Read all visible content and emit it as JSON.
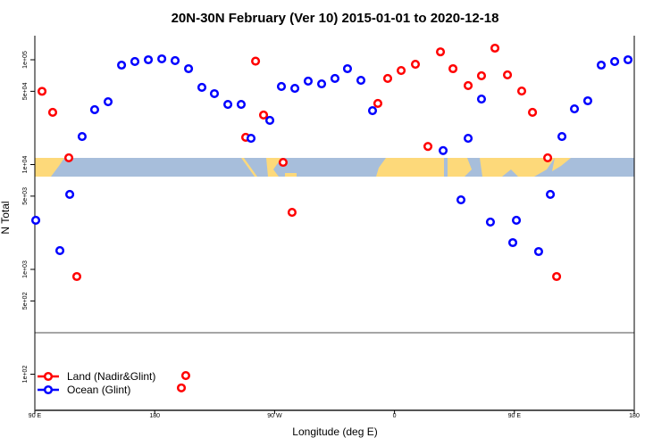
{
  "chart_data": {
    "type": "scatter",
    "title": "20N-30N February (Ver 10)   2015-01-01 to 2020-12-18",
    "xlabel": "Longitude (deg E)",
    "ylabel": "N Total",
    "xlim": [
      90,
      540
    ],
    "x_ticks": [
      {
        "value": 90,
        "label": "90 E"
      },
      {
        "value": 180,
        "label": "180"
      },
      {
        "value": 270,
        "label": "90 W"
      },
      {
        "value": 360,
        "label": "0"
      },
      {
        "value": 450,
        "label": "90 E"
      },
      {
        "value": 540,
        "label": "180"
      }
    ],
    "y_scale": "log",
    "y_ticks": [
      {
        "value": 100000,
        "label": "1e+05"
      },
      {
        "value": 50000,
        "label": "5e+04"
      },
      {
        "value": 10000,
        "label": "1e+04"
      },
      {
        "value": 5000,
        "label": "5e+03"
      },
      {
        "value": 1000,
        "label": "1e+03"
      },
      {
        "value": 500,
        "label": "5e+02"
      },
      {
        "value": 100,
        "label": "1e+02"
      }
    ],
    "grid": false,
    "legend_position": "bottom-left",
    "map_strip": "20N-30N land/ocean map at y=1e+04",
    "colors": {
      "land": "#ff0000",
      "ocean": "#0000ff",
      "map_land": "#fdd97a",
      "map_ocean": "#a7bedb"
    },
    "series": [
      {
        "name": "Land (Nadir&Glint)",
        "color": "#ff0000",
        "points": [
          [
            95.4,
            50000
          ],
          [
            103.4,
            31500
          ],
          [
            115.5,
            11600
          ],
          [
            121.5,
            855
          ],
          [
            200,
            74
          ],
          [
            203.3,
            97
          ],
          [
            248.3,
            18200
          ],
          [
            255.7,
            97000
          ],
          [
            261.7,
            29700
          ],
          [
            276.4,
            10500
          ],
          [
            283.1,
            3500
          ],
          [
            347.5,
            38300
          ],
          [
            354.9,
            66300
          ],
          [
            365,
            79000
          ],
          [
            375.7,
            90600
          ],
          [
            385.1,
            14900
          ],
          [
            394.5,
            119000
          ],
          [
            403.9,
            82200
          ],
          [
            415.3,
            56700
          ],
          [
            425.3,
            70300
          ],
          [
            435.4,
            129000
          ],
          [
            444.8,
            71700
          ],
          [
            455.5,
            50300
          ],
          [
            463.6,
            31500
          ],
          [
            475,
            11600
          ],
          [
            481.7,
            855
          ]
        ]
      },
      {
        "name": "Ocean (Glint)",
        "color": "#0000ff",
        "points": [
          [
            90.7,
            2940
          ],
          [
            108.8,
            1510
          ],
          [
            116.2,
            5190
          ],
          [
            125.5,
            18500
          ],
          [
            134.9,
            33400
          ],
          [
            145,
            39800
          ],
          [
            155.1,
            88900
          ],
          [
            165.1,
            96200
          ],
          [
            175.2,
            100000
          ],
          [
            185.3,
            102000
          ],
          [
            195.3,
            98100
          ],
          [
            205.4,
            82200
          ],
          [
            215.4,
            54500
          ],
          [
            224.8,
            47500
          ],
          [
            234.9,
            37500
          ],
          [
            244.9,
            37500
          ],
          [
            252.3,
            17800
          ],
          [
            266.4,
            26400
          ],
          [
            275.1,
            55600
          ],
          [
            285.2,
            53400
          ],
          [
            295.2,
            62500
          ],
          [
            305.3,
            58900
          ],
          [
            315.3,
            66300
          ],
          [
            324.7,
            82200
          ],
          [
            334.8,
            63700
          ],
          [
            343.5,
            32700
          ],
          [
            396.5,
            13600
          ],
          [
            409.9,
            4610
          ],
          [
            415.3,
            17800
          ],
          [
            425.3,
            42200
          ],
          [
            432,
            2830
          ],
          [
            448.8,
            1800
          ],
          [
            451.5,
            2940
          ],
          [
            468.2,
            1480
          ],
          [
            477,
            5190
          ],
          [
            485.7,
            18500
          ],
          [
            495.1,
            34000
          ],
          [
            505.1,
            40600
          ],
          [
            515.2,
            88900
          ],
          [
            525.3,
            96200
          ],
          [
            535.3,
            100000
          ]
        ]
      }
    ]
  }
}
